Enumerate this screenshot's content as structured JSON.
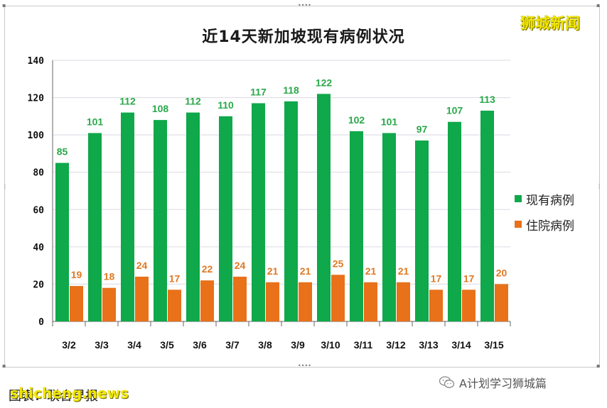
{
  "brand": "狮城新闻",
  "footer": {
    "left_text": "图表：联合早报",
    "watermark": "shicheng.news",
    "right_text": "A计划学习狮城篇"
  },
  "legend": [
    {
      "label": "现有病例",
      "color": "#0fa84a"
    },
    {
      "label": "住院病例",
      "color": "#e8711a"
    }
  ],
  "chart_data": {
    "type": "bar",
    "title": "近14天新加坡现有病例状况",
    "categories": [
      "3/2",
      "3/3",
      "3/4",
      "3/5",
      "3/6",
      "3/7",
      "3/8",
      "3/9",
      "3/10",
      "3/11",
      "3/12",
      "3/13",
      "3/14",
      "3/15"
    ],
    "series": [
      {
        "name": "现有病例",
        "color": "#0fa84a",
        "label_color": "#2aa84a",
        "values": [
          85,
          101,
          112,
          108,
          112,
          110,
          117,
          118,
          122,
          102,
          101,
          97,
          107,
          113
        ]
      },
      {
        "name": "住院病例",
        "color": "#e8711a",
        "label_color": "#e07a25",
        "values": [
          19,
          18,
          24,
          17,
          22,
          24,
          21,
          21,
          25,
          21,
          21,
          17,
          17,
          20
        ]
      }
    ],
    "y_ticks": [
      0,
      20,
      40,
      60,
      80,
      100,
      120,
      140
    ],
    "ylim": [
      0,
      140
    ],
    "xlabel": "",
    "ylabel": "",
    "grid": true,
    "legend_position": "right"
  }
}
